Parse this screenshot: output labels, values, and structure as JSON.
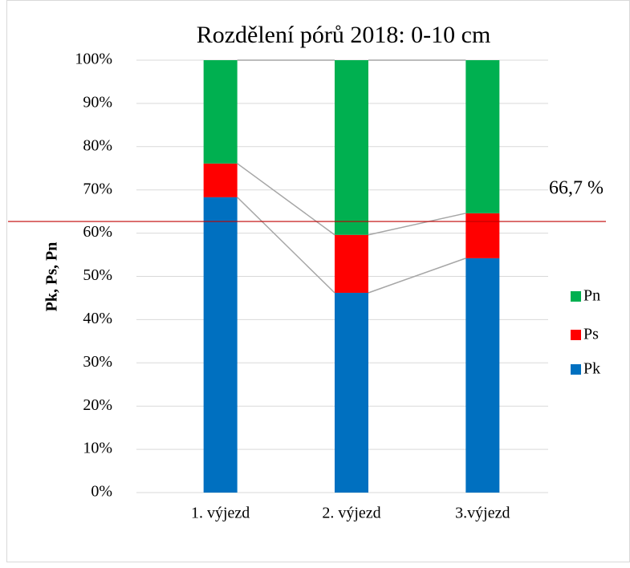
{
  "chart_data": {
    "type": "stacked_bar",
    "title": "Rozdělení pórů 2018: 0-10 cm",
    "y_label": "Pk, Ps, Pn",
    "categories": [
      "1. výjezd",
      "2. výjezd",
      "3.výjezd"
    ],
    "series": [
      {
        "name": "Pk",
        "color": "#0070c0",
        "values": [
          68.3,
          46.2,
          54.2
        ]
      },
      {
        "name": "Ps",
        "color": "#ff0000",
        "values": [
          7.8,
          13.4,
          10.4
        ]
      },
      {
        "name": "Pn",
        "color": "#00b050",
        "values": [
          23.9,
          40.4,
          35.4
        ]
      }
    ],
    "ylim": [
      0,
      100
    ],
    "yticks": [
      {
        "value": 0,
        "label": "0%"
      },
      {
        "value": 10,
        "label": "10%"
      },
      {
        "value": 20,
        "label": "20%"
      },
      {
        "value": 30,
        "label": "30%"
      },
      {
        "value": 40,
        "label": "40%"
      },
      {
        "value": 50,
        "label": "50%"
      },
      {
        "value": 60,
        "label": "60%"
      },
      {
        "value": 70,
        "label": "70%"
      },
      {
        "value": 80,
        "label": "80%"
      },
      {
        "value": 90,
        "label": "90%"
      },
      {
        "value": 100,
        "label": "100%"
      }
    ],
    "grid": true,
    "legend": "right",
    "reference_line": {
      "value": 62.7,
      "color": "#c00000"
    },
    "annotation": {
      "text": "66,7 %",
      "color": "#e00000"
    }
  }
}
